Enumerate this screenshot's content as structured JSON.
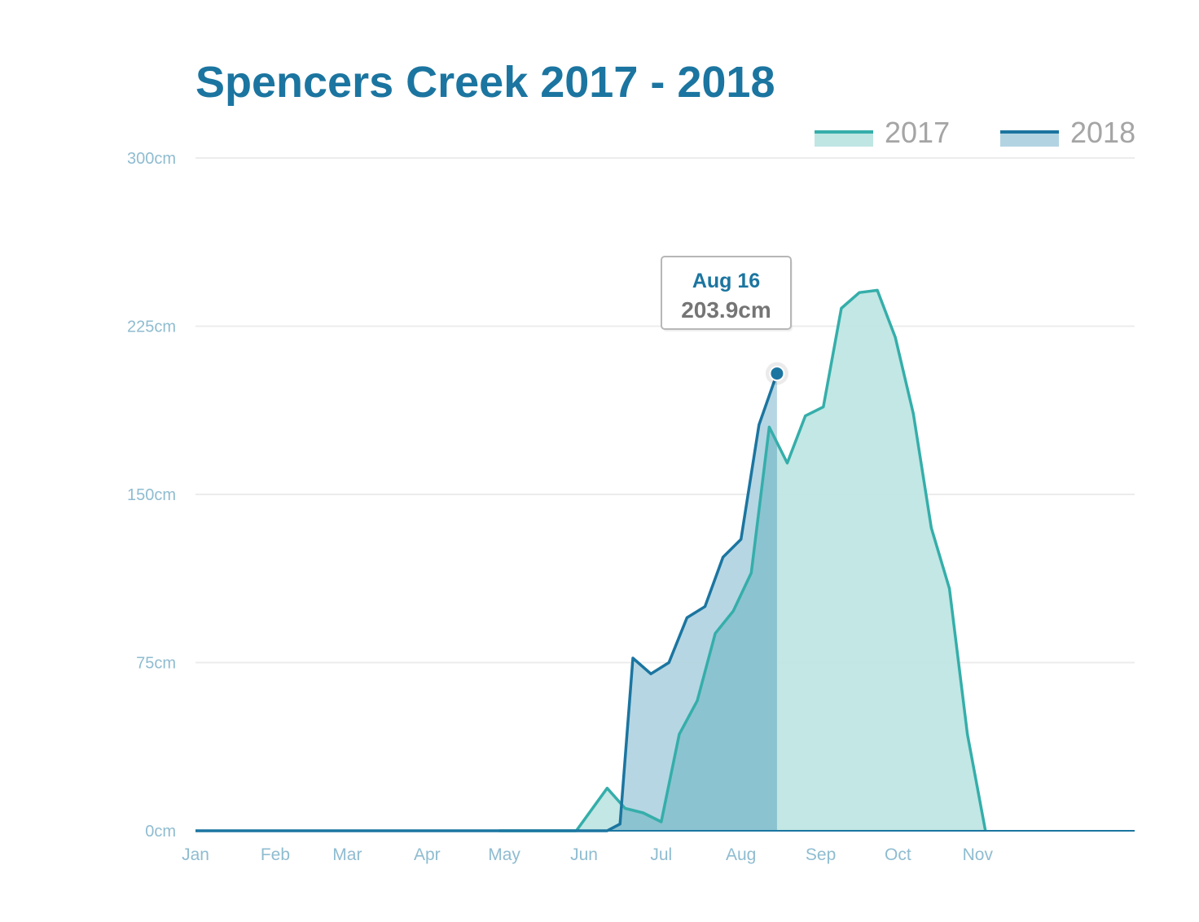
{
  "chart_data": {
    "type": "area",
    "title": "Spencers Creek 2017 - 2018",
    "x_unit": "day of year",
    "categories": [
      "Jan",
      "Feb",
      "Mar",
      "Apr",
      "May",
      "Jun",
      "Jul",
      "Aug",
      "Sep",
      "Oct",
      "Nov"
    ],
    "y_ticks": [
      "0cm",
      "75cm",
      "150cm",
      "225cm",
      "300cm"
    ],
    "ylim": [
      0,
      300
    ],
    "xlim": [
      0,
      365
    ],
    "grid": true,
    "legend_position": "top-right",
    "series": [
      {
        "name": "2017",
        "line_color": "#35aeaa",
        "fill_color": "#bfe6e3",
        "points": [
          [
            118,
            0
          ],
          [
            126,
            0
          ],
          [
            148,
            0
          ],
          [
            160,
            19
          ],
          [
            167,
            10
          ],
          [
            174,
            8
          ],
          [
            181,
            4
          ],
          [
            188,
            43
          ],
          [
            195,
            58
          ],
          [
            202,
            88
          ],
          [
            209,
            98
          ],
          [
            216,
            115
          ],
          [
            223,
            180
          ],
          [
            230,
            164
          ],
          [
            237,
            185
          ],
          [
            244,
            189
          ],
          [
            251,
            233
          ],
          [
            258,
            240
          ],
          [
            265,
            241
          ],
          [
            272,
            220
          ],
          [
            279,
            186
          ],
          [
            286,
            135
          ],
          [
            293,
            108
          ],
          [
            300,
            43
          ],
          [
            307,
            0
          ]
        ]
      },
      {
        "name": "2018",
        "line_color": "#1b75a0",
        "fill_color": "#b2d4e2",
        "points": [
          [
            0,
            0
          ],
          [
            160,
            0
          ],
          [
            165,
            3
          ],
          [
            170,
            77
          ],
          [
            177,
            70
          ],
          [
            184,
            75
          ],
          [
            191,
            95
          ],
          [
            198,
            100
          ],
          [
            205,
            122
          ],
          [
            212,
            130
          ],
          [
            219,
            181
          ],
          [
            226,
            203.9
          ]
        ]
      }
    ],
    "tooltip": {
      "date": "Aug 16",
      "value": "203.9cm",
      "x": 226,
      "y": 203.9
    }
  }
}
